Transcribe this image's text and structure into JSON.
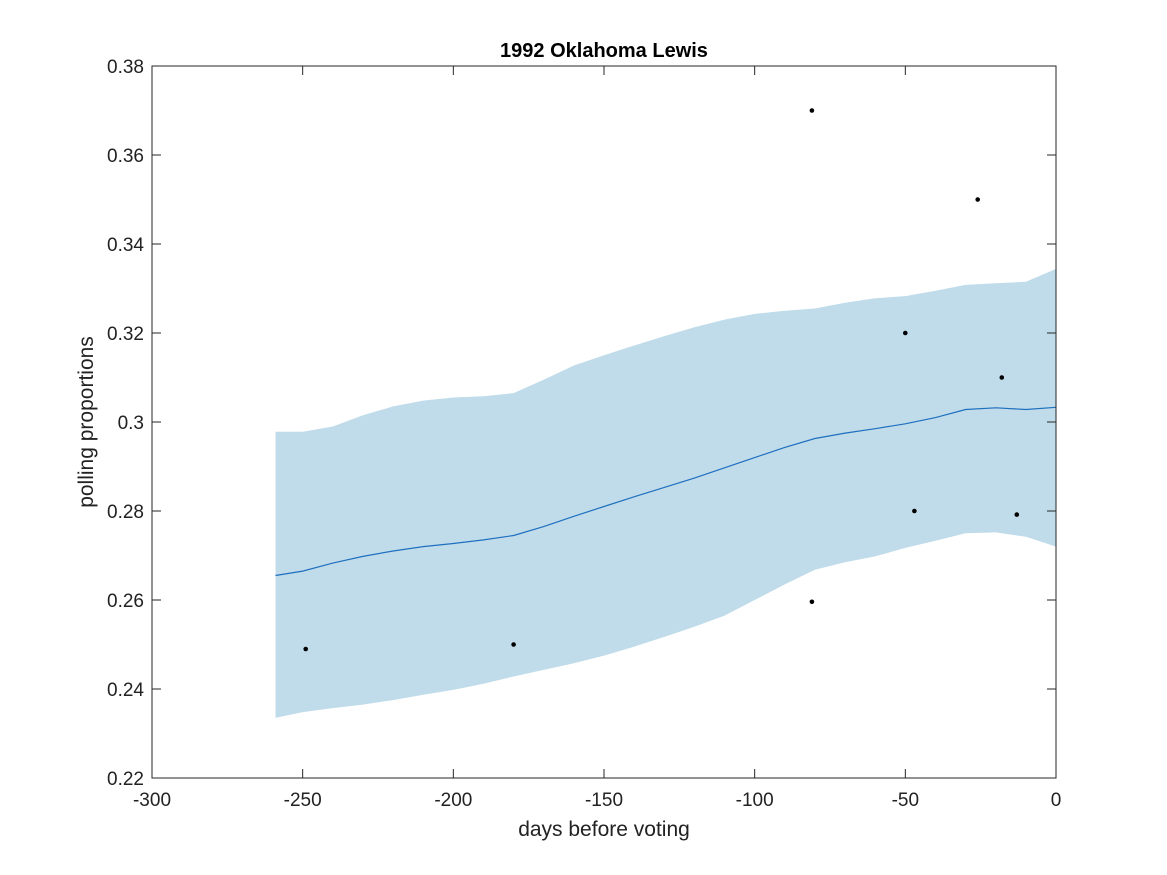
{
  "chart_data": {
    "type": "line",
    "title": "1992 Oklahoma Lewis",
    "xlabel": "days before voting",
    "ylabel": "polling proportions",
    "xlim": [
      -300,
      0
    ],
    "ylim": [
      0.22,
      0.38
    ],
    "xticks": [
      -300,
      -250,
      -200,
      -150,
      -100,
      -50,
      0
    ],
    "xtick_labels": [
      "-300",
      "-250",
      "-200",
      "-150",
      "-100",
      "-50",
      "0"
    ],
    "yticks": [
      0.22,
      0.24,
      0.26,
      0.28,
      0.3,
      0.32,
      0.34,
      0.36,
      0.38
    ],
    "ytick_labels": [
      "0.22",
      "0.24",
      "0.26",
      "0.28",
      "0.3",
      "0.32",
      "0.34",
      "0.36",
      "0.38"
    ],
    "grid": false,
    "colors": {
      "line": "#1f6fbf",
      "band": "#c0dcea",
      "points": "#000000",
      "axes": "#262626"
    },
    "trend": {
      "x": [
        -259,
        -250,
        -240,
        -230,
        -220,
        -210,
        -200,
        -190,
        -180,
        -170,
        -160,
        -150,
        -140,
        -130,
        -120,
        -110,
        -100,
        -90,
        -80,
        -70,
        -60,
        -50,
        -40,
        -30,
        -20,
        -10,
        0
      ],
      "y": [
        0.2655,
        0.2665,
        0.2683,
        0.2698,
        0.271,
        0.272,
        0.2727,
        0.2735,
        0.2745,
        0.2765,
        0.2788,
        0.281,
        0.2832,
        0.2853,
        0.2874,
        0.2897,
        0.292,
        0.2943,
        0.2963,
        0.2975,
        0.2985,
        0.2996,
        0.301,
        0.3028,
        0.3032,
        0.3028,
        0.3033
      ]
    },
    "band": {
      "x": [
        -259,
        -250,
        -240,
        -230,
        -220,
        -210,
        -200,
        -190,
        -180,
        -170,
        -160,
        -150,
        -140,
        -130,
        -120,
        -110,
        -100,
        -90,
        -80,
        -70,
        -60,
        -50,
        -40,
        -30,
        -20,
        -10,
        0
      ],
      "upper": [
        0.2978,
        0.2978,
        0.299,
        0.3015,
        0.3035,
        0.3048,
        0.3055,
        0.3058,
        0.3065,
        0.3095,
        0.3127,
        0.315,
        0.3172,
        0.3193,
        0.3213,
        0.323,
        0.3243,
        0.325,
        0.3255,
        0.3268,
        0.3278,
        0.3283,
        0.3295,
        0.3308,
        0.3312,
        0.3315,
        0.3344
      ],
      "lower": [
        0.2335,
        0.2348,
        0.2357,
        0.2365,
        0.2375,
        0.2387,
        0.2398,
        0.2412,
        0.2428,
        0.2443,
        0.2458,
        0.2475,
        0.2495,
        0.2517,
        0.254,
        0.2565,
        0.26,
        0.2635,
        0.2668,
        0.2685,
        0.2698,
        0.2717,
        0.2733,
        0.275,
        0.2752,
        0.2742,
        0.272
      ]
    },
    "points": [
      {
        "x": -249,
        "y": 0.249
      },
      {
        "x": -180,
        "y": 0.25
      },
      {
        "x": -81,
        "y": 0.37
      },
      {
        "x": -81,
        "y": 0.2596
      },
      {
        "x": -50,
        "y": 0.32
      },
      {
        "x": -47,
        "y": 0.28
      },
      {
        "x": -26,
        "y": 0.35
      },
      {
        "x": -18,
        "y": 0.31
      },
      {
        "x": -13,
        "y": 0.2792
      }
    ]
  }
}
